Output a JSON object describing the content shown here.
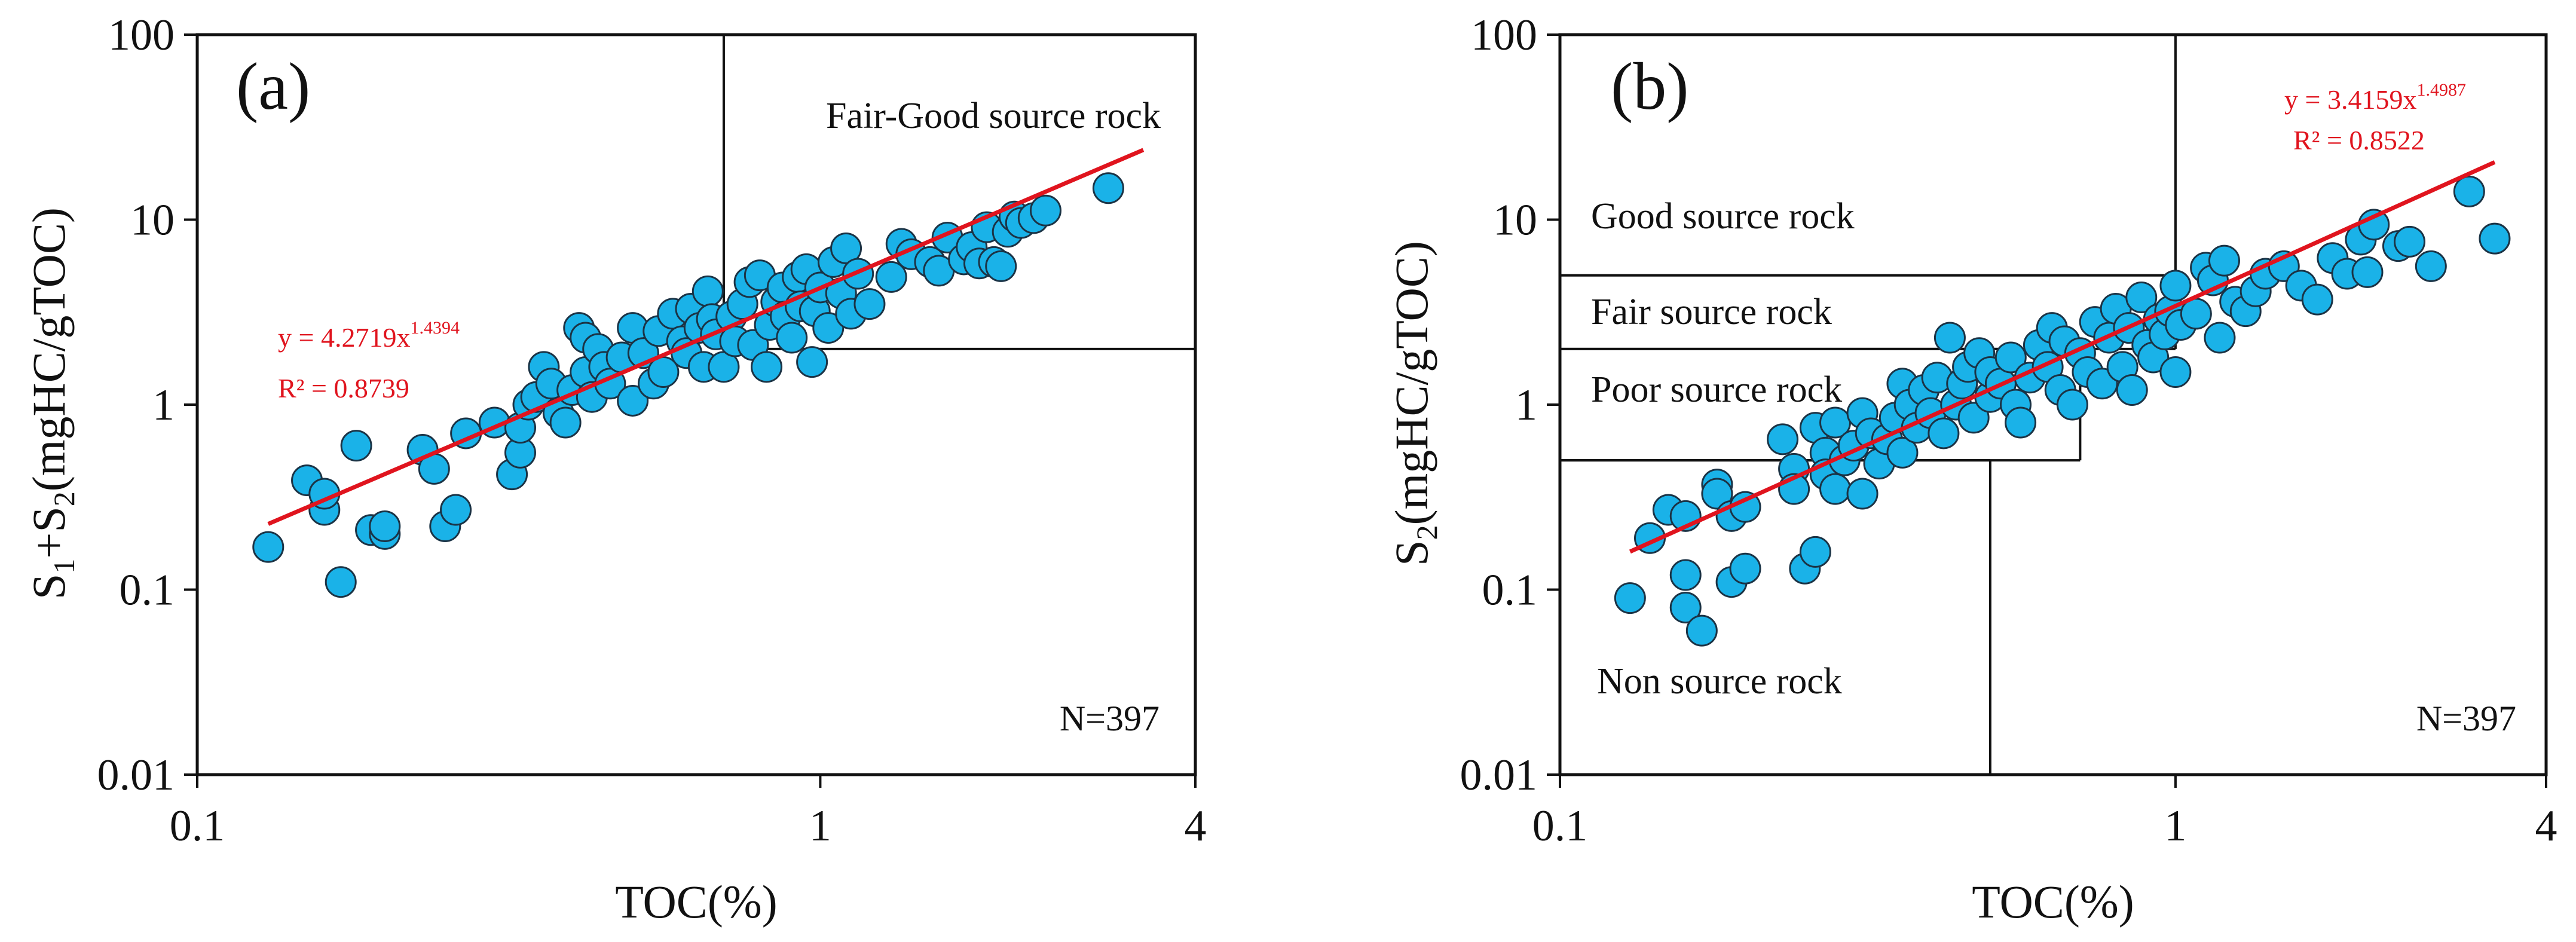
{
  "colors": {
    "marker_fill": "#1ab2e8",
    "marker_stroke": "#1b3345",
    "fit_line": "#e0141e",
    "text": "#111111"
  },
  "chart_data": [
    {
      "id": "a",
      "type": "scatter",
      "panel_label": "(a)",
      "xlabel": "TOC(%)",
      "ylabel_main": "S",
      "ylabel_sub1": "1",
      "ylabel_plus": "+S",
      "ylabel_sub2": "2",
      "ylabel_tail": "(mgHC/gTOC)",
      "xscale": "log",
      "yscale": "log",
      "xlim": [
        0.1,
        4
      ],
      "ylim": [
        0.01,
        100
      ],
      "xticks": [
        0.1,
        1,
        4
      ],
      "xtick_labels": [
        "0.1",
        "1",
        "4"
      ],
      "yticks": [
        0.01,
        0.1,
        1,
        10,
        100
      ],
      "ytick_labels": [
        "0.01",
        "0.1",
        "1",
        "10",
        "100"
      ],
      "fit": {
        "a": 4.2719,
        "b": 1.4394,
        "x_range": [
          0.13,
          3.3
        ],
        "eq_prefix": "y = 4.2719x",
        "eq_exp": "1.4394",
        "r2": "R² = 0.8739"
      },
      "count_label": "N=397",
      "regions": [
        {
          "label": "Fair-Good source rock",
          "x_from": 0.7,
          "x_to": 4,
          "y_from": 2,
          "y_to": 100
        }
      ],
      "points": [
        [
          0.13,
          0.17
        ],
        [
          0.15,
          0.39
        ],
        [
          0.16,
          0.27
        ],
        [
          0.16,
          0.33
        ],
        [
          0.17,
          0.11
        ],
        [
          0.18,
          0.6
        ],
        [
          0.19,
          0.21
        ],
        [
          0.2,
          0.2
        ],
        [
          0.2,
          0.22
        ],
        [
          0.23,
          0.57
        ],
        [
          0.24,
          0.45
        ],
        [
          0.25,
          0.22
        ],
        [
          0.26,
          0.27
        ],
        [
          0.27,
          0.7
        ],
        [
          0.3,
          0.8
        ],
        [
          0.32,
          0.42
        ],
        [
          0.33,
          0.55
        ],
        [
          0.33,
          0.75
        ],
        [
          0.34,
          1.0
        ],
        [
          0.35,
          1.1
        ],
        [
          0.36,
          1.6
        ],
        [
          0.37,
          1.3
        ],
        [
          0.38,
          0.9
        ],
        [
          0.39,
          0.8
        ],
        [
          0.4,
          1.2
        ],
        [
          0.41,
          2.6
        ],
        [
          0.42,
          2.3
        ],
        [
          0.42,
          1.5
        ],
        [
          0.43,
          1.1
        ],
        [
          0.44,
          2.0
        ],
        [
          0.45,
          1.6
        ],
        [
          0.46,
          1.3
        ],
        [
          0.48,
          1.8
        ],
        [
          0.5,
          2.6
        ],
        [
          0.5,
          1.05
        ],
        [
          0.52,
          1.9
        ],
        [
          0.54,
          1.3
        ],
        [
          0.55,
          2.5
        ],
        [
          0.56,
          1.5
        ],
        [
          0.58,
          3.1
        ],
        [
          0.6,
          2.2
        ],
        [
          0.61,
          1.9
        ],
        [
          0.62,
          3.3
        ],
        [
          0.64,
          2.6
        ],
        [
          0.65,
          1.6
        ],
        [
          0.66,
          4.1
        ],
        [
          0.67,
          2.9
        ],
        [
          0.68,
          2.4
        ],
        [
          0.7,
          1.6
        ],
        [
          0.72,
          3.0
        ],
        [
          0.73,
          2.2
        ],
        [
          0.75,
          3.5
        ],
        [
          0.77,
          4.6
        ],
        [
          0.78,
          2.1
        ],
        [
          0.8,
          5.0
        ],
        [
          0.82,
          1.6
        ],
        [
          0.83,
          2.7
        ],
        [
          0.85,
          3.6
        ],
        [
          0.87,
          4.3
        ],
        [
          0.88,
          3.0
        ],
        [
          0.9,
          2.3
        ],
        [
          0.92,
          4.9
        ],
        [
          0.93,
          3.4
        ],
        [
          0.95,
          5.4
        ],
        [
          0.97,
          1.7
        ],
        [
          0.98,
          3.2
        ],
        [
          1.0,
          4.3
        ],
        [
          1.03,
          2.6
        ],
        [
          1.05,
          5.9
        ],
        [
          1.08,
          4.0
        ],
        [
          1.1,
          7.0
        ],
        [
          1.12,
          3.1
        ],
        [
          1.15,
          5.1
        ],
        [
          1.2,
          3.5
        ],
        [
          1.3,
          4.9
        ],
        [
          1.35,
          7.4
        ],
        [
          1.4,
          6.5
        ],
        [
          1.5,
          5.9
        ],
        [
          1.55,
          5.3
        ],
        [
          1.6,
          8.0
        ],
        [
          1.7,
          6.1
        ],
        [
          1.75,
          7.1
        ],
        [
          1.8,
          5.8
        ],
        [
          1.85,
          9.1
        ],
        [
          1.9,
          5.9
        ],
        [
          1.95,
          5.6
        ],
        [
          2.0,
          8.6
        ],
        [
          2.05,
          10.4
        ],
        [
          2.1,
          9.6
        ],
        [
          2.2,
          10.2
        ],
        [
          2.3,
          11.2
        ],
        [
          2.9,
          14.8
        ]
      ]
    },
    {
      "id": "b",
      "type": "scatter",
      "panel_label": "(b)",
      "xlabel": "TOC(%)",
      "ylabel_main": "S",
      "ylabel_sub2": "2",
      "ylabel_tail": "(mgHC/gTOC)",
      "xscale": "log",
      "yscale": "log",
      "xlim": [
        0.1,
        4
      ],
      "ylim": [
        0.01,
        100
      ],
      "xticks": [
        0.1,
        1,
        4
      ],
      "xtick_labels": [
        "0.1",
        "1",
        "4"
      ],
      "yticks": [
        0.01,
        0.1,
        1,
        10,
        100
      ],
      "ytick_labels": [
        "0.01",
        "0.1",
        "1",
        "10",
        "100"
      ],
      "fit": {
        "a": 3.4159,
        "b": 1.4987,
        "x_range": [
          0.13,
          3.3
        ],
        "eq_prefix": "y = 3.4159x",
        "eq_exp": "1.4987",
        "r2": "R² = 0.8522"
      },
      "count_label": "N=397",
      "regions": [
        {
          "label": "Good source rock",
          "x_from": 0.1,
          "x_to": 1,
          "y_from": 5,
          "y_to": 100
        },
        {
          "label": "Fair source rock",
          "x_from": 0.1,
          "x_to": 1,
          "y_from": 2,
          "y_to": 5
        },
        {
          "label": "Poor source rock",
          "x_from": 0.1,
          "x_to": 0.7,
          "y_from": 0.5,
          "y_to": 2
        },
        {
          "label": "Non source rock",
          "x_from": 0.1,
          "x_to": 0.5,
          "y_from": 0.01,
          "y_to": 0.5
        }
      ],
      "points": [
        [
          0.13,
          0.09
        ],
        [
          0.14,
          0.19
        ],
        [
          0.15,
          0.27
        ],
        [
          0.16,
          0.25
        ],
        [
          0.16,
          0.12
        ],
        [
          0.16,
          0.08
        ],
        [
          0.17,
          0.06
        ],
        [
          0.18,
          0.37
        ],
        [
          0.18,
          0.33
        ],
        [
          0.19,
          0.11
        ],
        [
          0.19,
          0.25
        ],
        [
          0.2,
          0.13
        ],
        [
          0.2,
          0.28
        ],
        [
          0.23,
          0.65
        ],
        [
          0.24,
          0.45
        ],
        [
          0.24,
          0.35
        ],
        [
          0.25,
          0.13
        ],
        [
          0.26,
          0.16
        ],
        [
          0.26,
          0.75
        ],
        [
          0.27,
          0.55
        ],
        [
          0.27,
          0.42
        ],
        [
          0.28,
          0.35
        ],
        [
          0.28,
          0.8
        ],
        [
          0.29,
          0.5
        ],
        [
          0.3,
          0.6
        ],
        [
          0.31,
          0.9
        ],
        [
          0.31,
          0.33
        ],
        [
          0.32,
          0.7
        ],
        [
          0.33,
          0.48
        ],
        [
          0.34,
          0.65
        ],
        [
          0.35,
          0.85
        ],
        [
          0.36,
          1.3
        ],
        [
          0.36,
          0.55
        ],
        [
          0.37,
          1.0
        ],
        [
          0.38,
          0.75
        ],
        [
          0.39,
          1.2
        ],
        [
          0.4,
          0.9
        ],
        [
          0.41,
          1.4
        ],
        [
          0.42,
          0.7
        ],
        [
          0.43,
          2.3
        ],
        [
          0.44,
          1.0
        ],
        [
          0.45,
          1.3
        ],
        [
          0.46,
          1.6
        ],
        [
          0.47,
          0.85
        ],
        [
          0.48,
          1.9
        ],
        [
          0.5,
          1.1
        ],
        [
          0.5,
          1.5
        ],
        [
          0.52,
          1.3
        ],
        [
          0.54,
          1.8
        ],
        [
          0.55,
          1.0
        ],
        [
          0.56,
          0.8
        ],
        [
          0.58,
          1.4
        ],
        [
          0.6,
          2.1
        ],
        [
          0.62,
          1.6
        ],
        [
          0.63,
          2.6
        ],
        [
          0.65,
          1.2
        ],
        [
          0.66,
          2.2
        ],
        [
          0.68,
          1.0
        ],
        [
          0.7,
          1.9
        ],
        [
          0.72,
          1.5
        ],
        [
          0.74,
          2.8
        ],
        [
          0.76,
          1.3
        ],
        [
          0.78,
          2.3
        ],
        [
          0.8,
          3.3
        ],
        [
          0.82,
          1.6
        ],
        [
          0.84,
          2.6
        ],
        [
          0.85,
          1.2
        ],
        [
          0.88,
          3.8
        ],
        [
          0.9,
          2.1
        ],
        [
          0.92,
          1.8
        ],
        [
          0.94,
          2.9
        ],
        [
          0.96,
          2.4
        ],
        [
          0.98,
          3.2
        ],
        [
          1.0,
          4.4
        ],
        [
          1.0,
          1.5
        ],
        [
          1.02,
          2.7
        ],
        [
          1.08,
          3.1
        ],
        [
          1.12,
          5.5
        ],
        [
          1.15,
          4.7
        ],
        [
          1.18,
          2.3
        ],
        [
          1.2,
          6.0
        ],
        [
          1.25,
          3.6
        ],
        [
          1.3,
          3.2
        ],
        [
          1.35,
          4.1
        ],
        [
          1.4,
          5.1
        ],
        [
          1.5,
          5.6
        ],
        [
          1.6,
          4.4
        ],
        [
          1.7,
          3.7
        ],
        [
          1.8,
          6.2
        ],
        [
          1.9,
          5.1
        ],
        [
          2.0,
          7.8
        ],
        [
          2.05,
          5.2
        ],
        [
          2.1,
          9.4
        ],
        [
          2.3,
          7.2
        ],
        [
          2.4,
          7.6
        ],
        [
          2.6,
          5.6
        ],
        [
          3.0,
          14.2
        ],
        [
          3.3,
          7.9
        ]
      ]
    }
  ]
}
